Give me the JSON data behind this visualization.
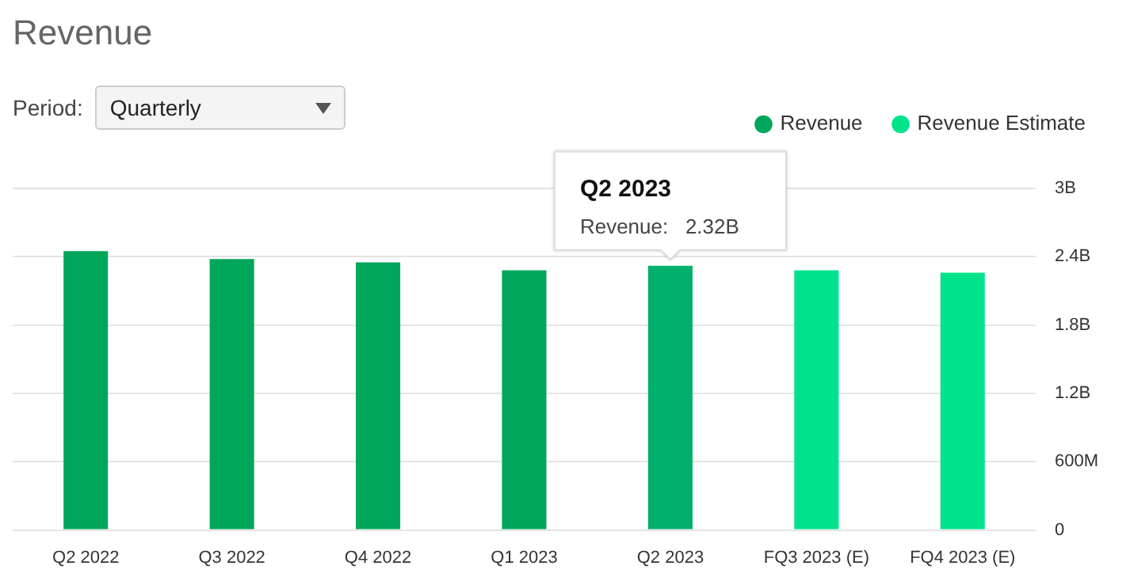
{
  "chart_data": {
    "type": "bar",
    "title": "Revenue",
    "categories": [
      "Q2 2022",
      "Q3 2022",
      "Q4 2022",
      "Q1 2023",
      "Q2 2023",
      "FQ3 2023 (E)",
      "FQ4 2023 (E)"
    ],
    "series": [
      {
        "name": "Revenue",
        "color": "#00a65a",
        "colors": [
          "#00a65a",
          "#00a65a",
          "#00a65a",
          "#00a65a",
          "#00b06c",
          null,
          null
        ],
        "values": [
          2450000000,
          2380000000,
          2350000000,
          2280000000,
          2320000000,
          null,
          null
        ]
      },
      {
        "name": "Revenue Estimate",
        "color": "#00e38a",
        "values": [
          null,
          null,
          null,
          null,
          null,
          2280000000,
          2260000000
        ]
      }
    ],
    "stacked": true,
    "ylim": [
      0,
      3000000000
    ],
    "yticks": [
      0,
      {
        "value": 600000000,
        "label": "600M"
      },
      {
        "value": 1200000000,
        "label": "1.2B"
      },
      {
        "value": 1800000000,
        "label": "1.8B"
      },
      {
        "value": 2400000000,
        "label": "2.4B"
      },
      {
        "value": 3000000000,
        "label": "3B"
      }
    ],
    "grid": "y",
    "legend": "top right",
    "annotations": [
      "Period:",
      "Quarterly",
      {
        "text": "Q2 2023",
        "x": "Q2 2023",
        "y": 2320000000
      },
      {
        "text": "Revenue:   2.32B",
        "x": "Q2 2023",
        "y": 2320000000
      }
    ]
  }
}
